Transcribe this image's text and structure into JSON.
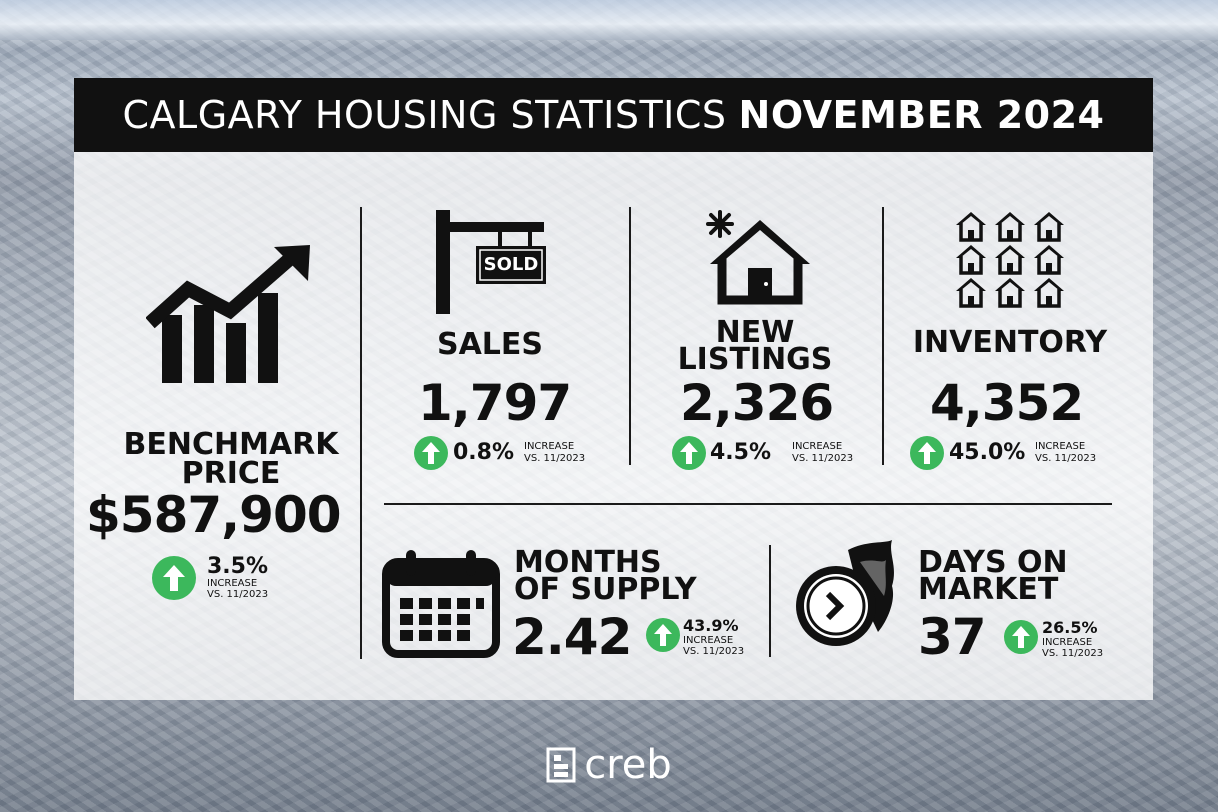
{
  "title": {
    "light": "CALGARY HOUSING STATISTICS",
    "bold": "NOVEMBER 2024"
  },
  "benchmark": {
    "label_line1": "BENCHMARK",
    "label_line2": "PRICE",
    "value": "$587,900",
    "change": "3.5%",
    "change_word": "INCREASE",
    "compare": "VS. 11/2023",
    "icon": "trending-up-bar-chart-icon"
  },
  "sales": {
    "label": "SALES",
    "value": "1,797",
    "change": "0.8%",
    "change_word": "INCREASE",
    "compare": "VS. 11/2023",
    "sign_text": "SOLD",
    "icon": "sold-sign-icon"
  },
  "new_listings": {
    "label_line1": "NEW",
    "label_line2": "LISTINGS",
    "value": "2,326",
    "change": "4.5%",
    "change_word": "INCREASE",
    "compare": "VS. 11/2023",
    "icon": "new-house-icon"
  },
  "inventory": {
    "label": "INVENTORY",
    "value": "4,352",
    "change": "45.0%",
    "change_word": "INCREASE",
    "compare": "VS. 11/2023",
    "icon": "houses-grid-icon"
  },
  "months_supply": {
    "label_line1": "MONTHS",
    "label_line2": "OF SUPPLY",
    "value": "2.42",
    "change": "43.9%",
    "change_word": "INCREASE",
    "compare": "VS. 11/2023",
    "icon": "calendar-icon"
  },
  "days_on_market": {
    "label_line1": "DAYS ON",
    "label_line2": "MARKET",
    "value": "37",
    "change": "26.5%",
    "change_word": "INCREASE",
    "compare": "VS. 11/2023",
    "icon": "fast-clock-icon"
  },
  "footer": {
    "brand": "creb",
    "icon": "creb-logo-icon"
  },
  "colors": {
    "accent_green": "#3cb85c",
    "title_bg": "#111111",
    "panel_bg": "#ffffff"
  }
}
